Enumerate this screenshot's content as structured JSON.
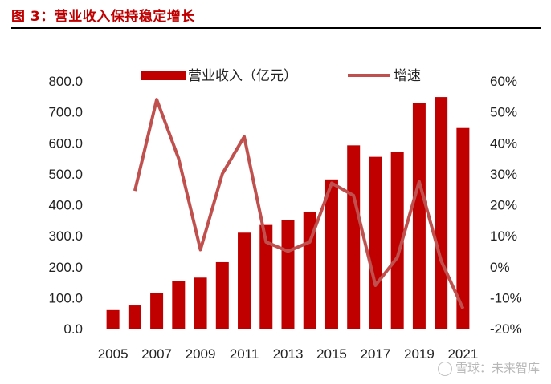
{
  "figure": {
    "title": "图 3：营业收入保持稳定增长"
  },
  "watermark": "雪球：未来智库",
  "colors": {
    "bar": "#c00000",
    "line": "#c0504d",
    "title": "#c00000"
  },
  "chart_data": {
    "type": "bar",
    "combo": "bar+line",
    "categories": [
      "2005",
      "2006",
      "2007",
      "2008",
      "2009",
      "2010",
      "2011",
      "2012",
      "2013",
      "2014",
      "2015",
      "2016",
      "2017",
      "2018",
      "2019",
      "2020",
      "2021"
    ],
    "x_tick_labels": [
      "2005",
      "2007",
      "2009",
      "2011",
      "2013",
      "2015",
      "2017",
      "2019",
      "2021"
    ],
    "series": [
      {
        "name": "营业收入（亿元）",
        "type": "bar",
        "axis": "left",
        "values": [
          60,
          75,
          115,
          155,
          165,
          215,
          310,
          335,
          350,
          378,
          482,
          592,
          555,
          572,
          730,
          748,
          648
        ]
      },
      {
        "name": "增速",
        "type": "line",
        "axis": "right",
        "values": [
          null,
          24.5,
          54,
          35,
          5.5,
          30,
          42,
          8,
          5,
          8,
          27,
          23,
          -6,
          3,
          27.5,
          2,
          -13.5
        ]
      }
    ],
    "y_left": {
      "ylim": [
        0,
        800
      ],
      "ticks": [
        "0.0",
        "100.0",
        "200.0",
        "300.0",
        "400.0",
        "500.0",
        "600.0",
        "700.0",
        "800.0"
      ]
    },
    "y_right": {
      "ylim": [
        -20,
        60
      ],
      "ticks": [
        "-20%",
        "-10%",
        "0%",
        "10%",
        "20%",
        "30%",
        "40%",
        "50%",
        "60%"
      ]
    },
    "grid": false,
    "legend_position": "top"
  }
}
